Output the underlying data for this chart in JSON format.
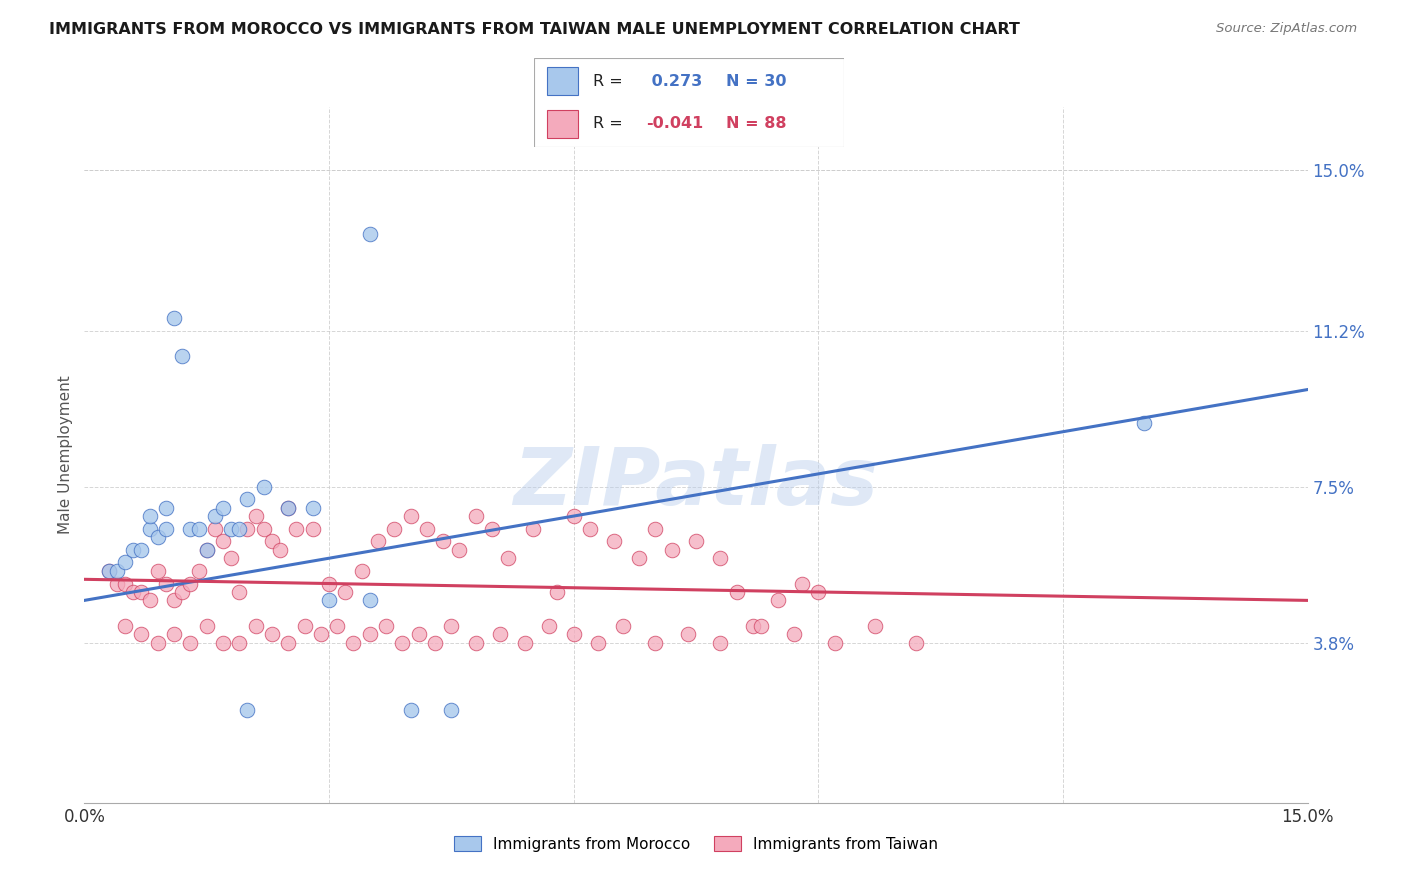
{
  "title": "IMMIGRANTS FROM MOROCCO VS IMMIGRANTS FROM TAIWAN MALE UNEMPLOYMENT CORRELATION CHART",
  "source": "Source: ZipAtlas.com",
  "ylabel": "Male Unemployment",
  "ytick_labels": [
    "15.0%",
    "11.2%",
    "7.5%",
    "3.8%"
  ],
  "ytick_values": [
    0.15,
    0.112,
    0.075,
    0.038
  ],
  "xlim": [
    0.0,
    0.15
  ],
  "ylim": [
    0.0,
    0.165
  ],
  "r_morocco": 0.273,
  "n_morocco": 30,
  "r_taiwan": -0.041,
  "n_taiwan": 88,
  "color_morocco": "#A8C8EC",
  "color_taiwan": "#F4AABC",
  "line_color_morocco": "#4472C4",
  "line_color_taiwan": "#D04060",
  "watermark": "ZIPatlas",
  "legend_label_morocco": "Immigrants from Morocco",
  "legend_label_taiwan": "Immigrants from Taiwan",
  "morocco_line_x0": 0.0,
  "morocco_line_y0": 0.048,
  "morocco_line_x1": 0.15,
  "morocco_line_y1": 0.098,
  "taiwan_line_x0": 0.0,
  "taiwan_line_y0": 0.053,
  "taiwan_line_x1": 0.15,
  "taiwan_line_y1": 0.048,
  "morocco_x": [
    0.003,
    0.004,
    0.005,
    0.006,
    0.007,
    0.008,
    0.008,
    0.009,
    0.01,
    0.01,
    0.011,
    0.012,
    0.013,
    0.014,
    0.015,
    0.016,
    0.017,
    0.018,
    0.019,
    0.02,
    0.02,
    0.022,
    0.025,
    0.028,
    0.03,
    0.035,
    0.04,
    0.045,
    0.13,
    0.035
  ],
  "morocco_y": [
    0.055,
    0.055,
    0.057,
    0.06,
    0.06,
    0.065,
    0.068,
    0.063,
    0.065,
    0.07,
    0.115,
    0.106,
    0.065,
    0.065,
    0.06,
    0.068,
    0.07,
    0.065,
    0.065,
    0.022,
    0.072,
    0.075,
    0.07,
    0.07,
    0.048,
    0.048,
    0.022,
    0.022,
    0.09,
    0.135
  ],
  "taiwan_x": [
    0.003,
    0.004,
    0.005,
    0.006,
    0.007,
    0.008,
    0.009,
    0.01,
    0.011,
    0.012,
    0.013,
    0.014,
    0.015,
    0.016,
    0.017,
    0.018,
    0.019,
    0.02,
    0.021,
    0.022,
    0.023,
    0.024,
    0.025,
    0.026,
    0.028,
    0.03,
    0.032,
    0.034,
    0.036,
    0.038,
    0.04,
    0.042,
    0.044,
    0.046,
    0.048,
    0.05,
    0.052,
    0.055,
    0.058,
    0.06,
    0.062,
    0.065,
    0.068,
    0.07,
    0.072,
    0.075,
    0.078,
    0.08,
    0.082,
    0.085,
    0.088,
    0.09,
    0.005,
    0.007,
    0.009,
    0.011,
    0.013,
    0.015,
    0.017,
    0.019,
    0.021,
    0.023,
    0.025,
    0.027,
    0.029,
    0.031,
    0.033,
    0.035,
    0.037,
    0.039,
    0.041,
    0.043,
    0.045,
    0.048,
    0.051,
    0.054,
    0.057,
    0.06,
    0.063,
    0.066,
    0.07,
    0.074,
    0.078,
    0.083,
    0.087,
    0.092,
    0.097,
    0.102
  ],
  "taiwan_y": [
    0.055,
    0.052,
    0.052,
    0.05,
    0.05,
    0.048,
    0.055,
    0.052,
    0.048,
    0.05,
    0.052,
    0.055,
    0.06,
    0.065,
    0.062,
    0.058,
    0.05,
    0.065,
    0.068,
    0.065,
    0.062,
    0.06,
    0.07,
    0.065,
    0.065,
    0.052,
    0.05,
    0.055,
    0.062,
    0.065,
    0.068,
    0.065,
    0.062,
    0.06,
    0.068,
    0.065,
    0.058,
    0.065,
    0.05,
    0.068,
    0.065,
    0.062,
    0.058,
    0.065,
    0.06,
    0.062,
    0.058,
    0.05,
    0.042,
    0.048,
    0.052,
    0.05,
    0.042,
    0.04,
    0.038,
    0.04,
    0.038,
    0.042,
    0.038,
    0.038,
    0.042,
    0.04,
    0.038,
    0.042,
    0.04,
    0.042,
    0.038,
    0.04,
    0.042,
    0.038,
    0.04,
    0.038,
    0.042,
    0.038,
    0.04,
    0.038,
    0.042,
    0.04,
    0.038,
    0.042,
    0.038,
    0.04,
    0.038,
    0.042,
    0.04,
    0.038,
    0.042,
    0.038
  ]
}
